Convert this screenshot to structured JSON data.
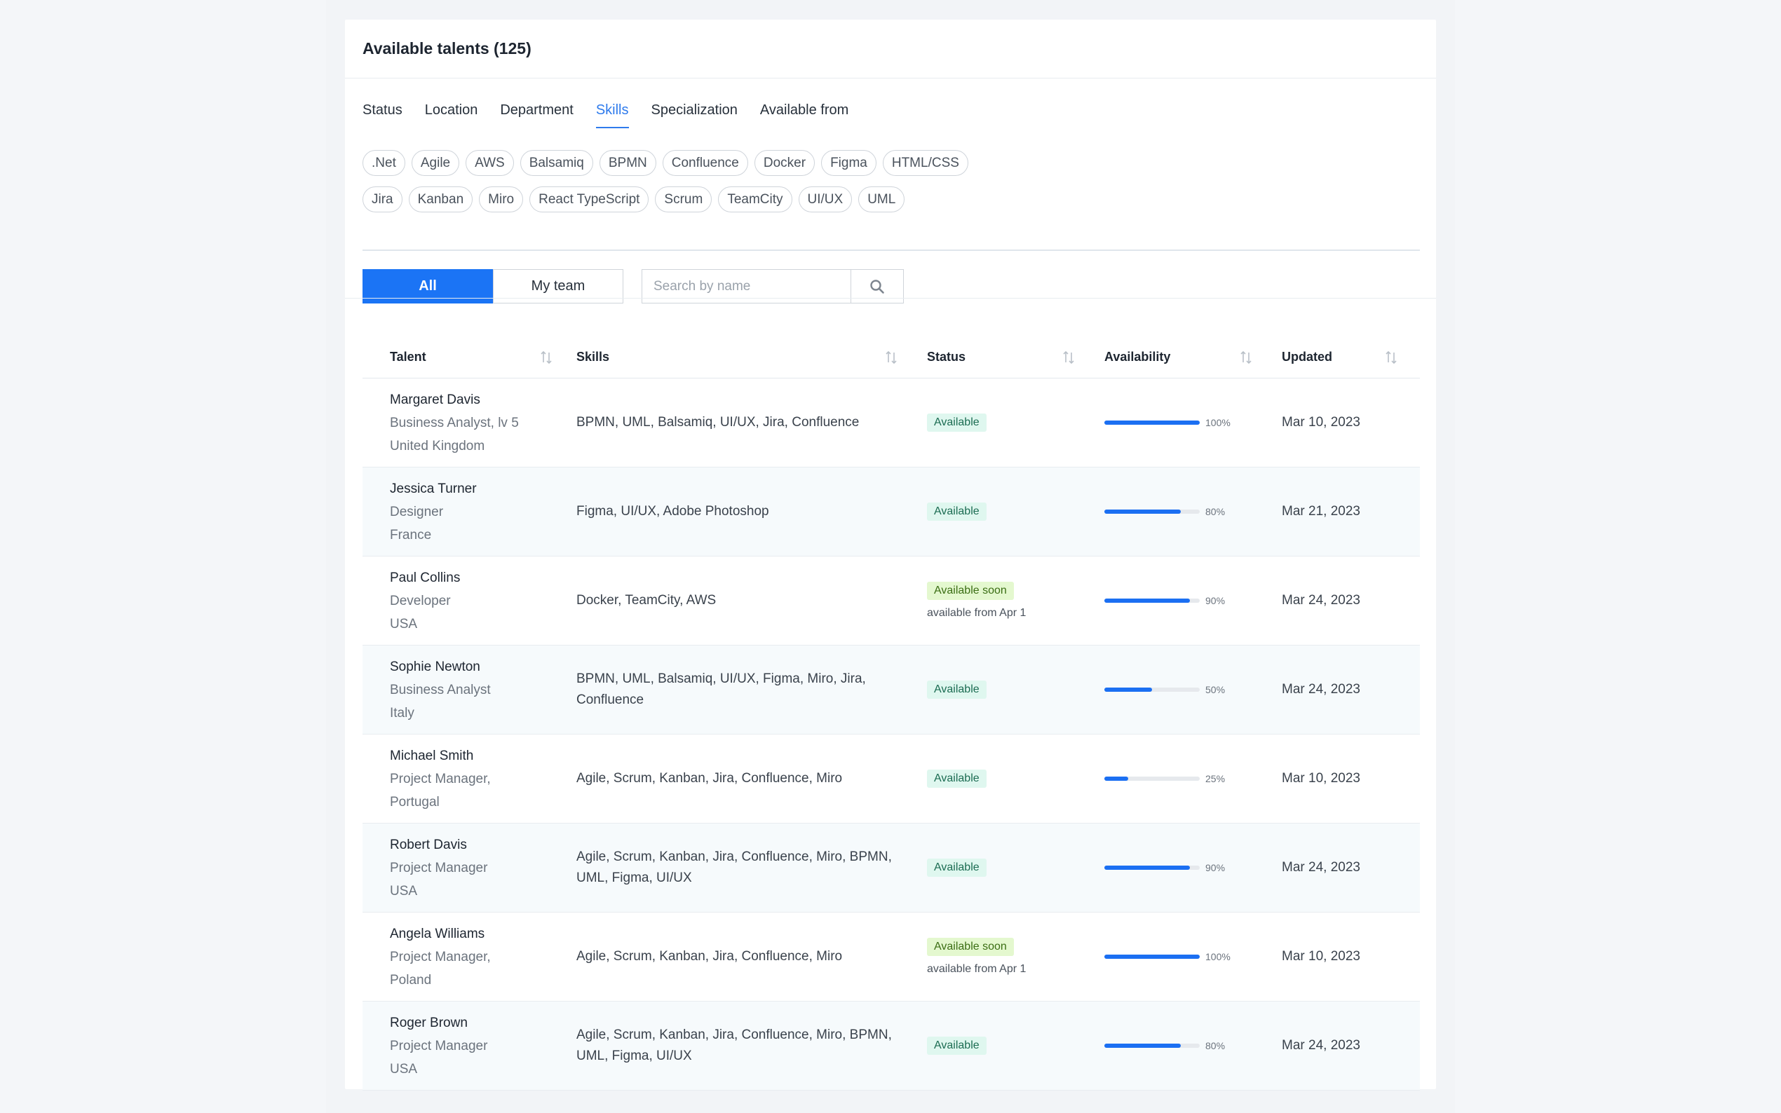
{
  "title": "Available talents (125)",
  "filter_tabs": [
    "Status",
    "Location",
    "Department",
    "Skills",
    "Specialization",
    "Available from"
  ],
  "active_filter_tab": "Skills",
  "skill_chips_row1": [
    ".Net",
    "Agile",
    "AWS",
    "Balsamiq",
    "BPMN",
    "Confluence",
    "Docker",
    "Figma",
    "HTML/CSS"
  ],
  "skill_chips_row2": [
    "Jira",
    "Kanban",
    "Miro",
    "React TypeScript",
    "Scrum",
    "TeamCity",
    "UI/UX",
    "UML"
  ],
  "toggle": {
    "all_label": "All",
    "my_team_label": "My team",
    "active": "All"
  },
  "search": {
    "placeholder": "Search by name",
    "value": ""
  },
  "columns": {
    "talent": "Talent",
    "skills": "Skills",
    "status": "Status",
    "availability": "Availability",
    "updated": "Updated"
  },
  "icons": {
    "sort": "sort-icon",
    "search": "search-icon"
  },
  "colors": {
    "accent": "#1b74f5",
    "available_bg": "#dff7ef",
    "soon_bg": "#e4f8cf",
    "bar": "#1b6ff2"
  },
  "rows": [
    {
      "name": "Margaret Davis",
      "role": "Business Analyst, lv 5",
      "country": "United Kingdom",
      "skills": "BPMN, UML, Balsamiq, UI/UX, Jira, Confluence",
      "status": "Available",
      "status_note": "",
      "availability": 100,
      "availability_label": "100%",
      "updated": "Mar 10, 2023"
    },
    {
      "name": "Jessica Turner",
      "role": "Designer",
      "country": "France",
      "skills": "Figma, UI/UX, Adobe Photoshop",
      "status": "Available",
      "status_note": "",
      "availability": 80,
      "availability_label": "80%",
      "updated": "Mar 21, 2023"
    },
    {
      "name": "Paul Collins",
      "role": "Developer",
      "country": "USA",
      "skills": "Docker, TeamCity, AWS",
      "status": "Available soon",
      "status_note": "available from Apr 1",
      "availability": 90,
      "availability_label": "90%",
      "updated": "Mar 24, 2023"
    },
    {
      "name": "Sophie Newton",
      "role": "Business Analyst",
      "country": "Italy",
      "skills": "BPMN, UML, Balsamiq, UI/UX, Figma, Miro, Jira, Confluence",
      "status": "Available",
      "status_note": "",
      "availability": 50,
      "availability_label": "50%",
      "updated": "Mar 24, 2023"
    },
    {
      "name": "Michael Smith",
      "role": "Project Manager,",
      "country": "Portugal",
      "skills": "Agile, Scrum, Kanban, Jira, Confluence, Miro",
      "status": "Available",
      "status_note": "",
      "availability": 25,
      "availability_label": "25%",
      "updated": "Mar 10, 2023"
    },
    {
      "name": "Robert Davis",
      "role": "Project Manager",
      "country": "USA",
      "skills": "Agile, Scrum, Kanban, Jira, Confluence, Miro, BPMN, UML, Figma, UI/UX",
      "status": "Available",
      "status_note": "",
      "availability": 90,
      "availability_label": "90%",
      "updated": "Mar 24, 2023"
    },
    {
      "name": "Angela Williams",
      "role": "Project Manager,",
      "country": "Poland",
      "skills": "Agile, Scrum, Kanban, Jira, Confluence, Miro",
      "status": "Available soon",
      "status_note": "available from Apr 1",
      "availability": 100,
      "availability_label": "100%",
      "updated": "Mar 10, 2023"
    },
    {
      "name": "Roger Brown",
      "role": "Project Manager",
      "country": "USA",
      "skills": "Agile, Scrum, Kanban, Jira, Confluence, Miro, BPMN, UML, Figma, UI/UX",
      "status": "Available",
      "status_note": "",
      "availability": 80,
      "availability_label": "80%",
      "updated": "Mar 24, 2023"
    }
  ]
}
